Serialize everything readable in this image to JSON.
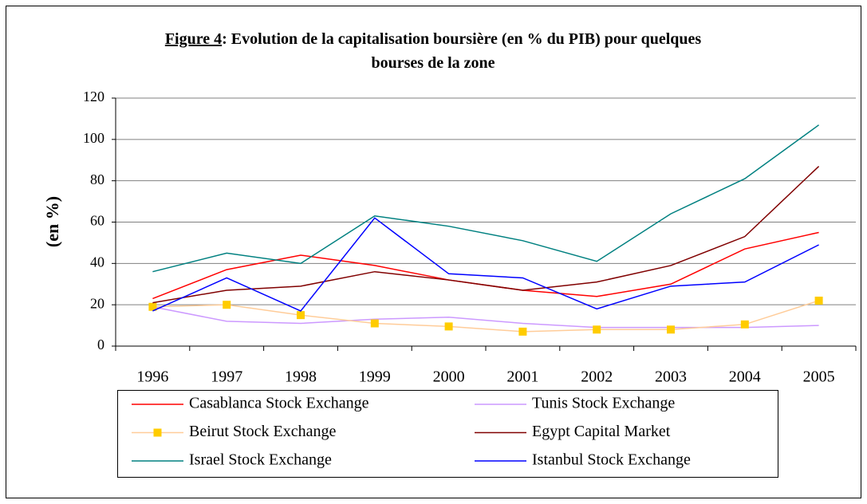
{
  "chart_data": {
    "type": "line",
    "title": {
      "prefix": "Figure 4",
      "text": ": Evolution de la capitalisation boursière (en % du PIB) pour quelques bourses de la zone"
    },
    "ylabel": "(en %)",
    "categories": [
      "1996",
      "1997",
      "1998",
      "1999",
      "2000",
      "2001",
      "2002",
      "2003",
      "2004",
      "2005"
    ],
    "ylim": [
      0,
      120
    ],
    "yticks": [
      0,
      20,
      40,
      60,
      80,
      100,
      120
    ],
    "grid": true,
    "series": [
      {
        "name": "Casablanca Stock Exchange",
        "color": "#ff0000",
        "values": [
          23,
          37,
          44,
          39,
          32,
          27,
          24,
          30,
          47,
          55
        ]
      },
      {
        "name": "Tunis Stock Exchange",
        "color": "#cc99ff",
        "values": [
          19,
          12,
          11,
          13,
          14,
          11,
          9,
          9,
          9,
          10
        ]
      },
      {
        "name": "Beirut Stock Exchange",
        "color": "#ffcc99",
        "marker_color": "#ffcc00",
        "values": [
          19,
          20,
          15,
          11,
          9.5,
          7,
          8,
          8,
          10.5,
          22
        ]
      },
      {
        "name": "Egypt Capital Market",
        "color": "#800000",
        "values": [
          21,
          27,
          29,
          36,
          32,
          27,
          31,
          39,
          53,
          87
        ]
      },
      {
        "name": "Israel Stock Exchange",
        "color": "#008080",
        "values": [
          36,
          45,
          40,
          63,
          58,
          51,
          41,
          64,
          81,
          107
        ]
      },
      {
        "name": "Istanbul Stock Exchange",
        "color": "#0000ff",
        "values": [
          17,
          33,
          17,
          62,
          35,
          33,
          18,
          29,
          31,
          49
        ]
      }
    ]
  }
}
